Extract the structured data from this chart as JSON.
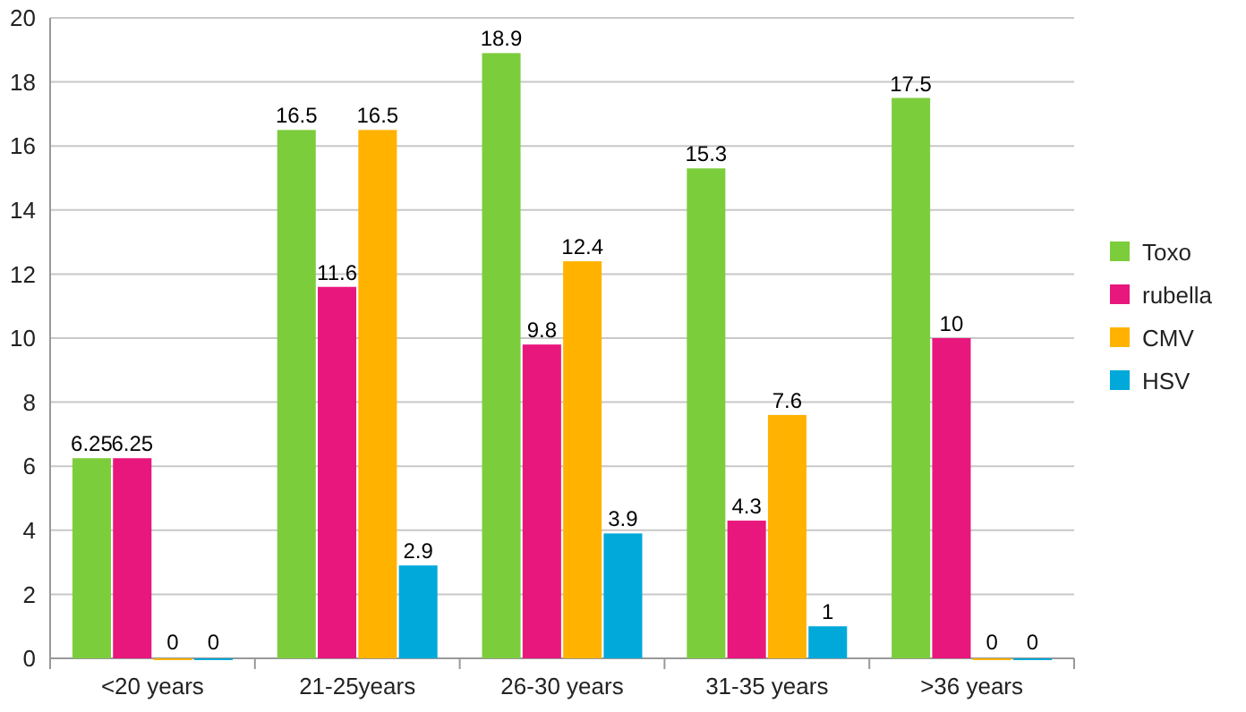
{
  "chart_data": {
    "type": "bar",
    "categories": [
      "<20 years",
      "21-25years",
      "26-30 years",
      "31-35 years",
      ">36 years"
    ],
    "series": [
      {
        "name": "Toxo",
        "color": "#7ccd3c",
        "values": [
          6.25,
          16.5,
          18.9,
          15.3,
          17.5
        ]
      },
      {
        "name": "rubella",
        "color": "#e8177d",
        "values": [
          6.25,
          11.6,
          9.8,
          4.3,
          10
        ]
      },
      {
        "name": "CMV",
        "color": "#ffb300",
        "values": [
          0,
          16.5,
          12.4,
          7.6,
          0
        ]
      },
      {
        "name": "HSV",
        "color": "#00a9d9",
        "values": [
          0,
          2.9,
          3.9,
          1,
          0
        ]
      }
    ],
    "ylim": [
      0,
      20
    ],
    "yticks": [
      0,
      2,
      4,
      6,
      8,
      10,
      12,
      14,
      16,
      18,
      20
    ],
    "grid": "y",
    "legend": "right",
    "data_labels": true
  }
}
